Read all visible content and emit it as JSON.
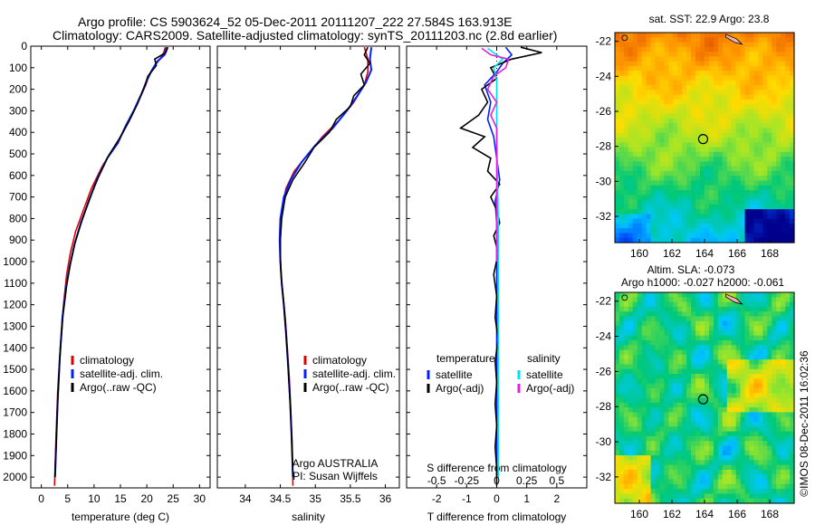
{
  "header": {
    "line1": "Argo profile: CS 5903624_52 05-Dec-2011 20111207_222 27.584S 163.913E",
    "line2": "Climatology: CARS2009. Satellite-adjusted climatology: synTS_20111203.nc (2.8d earlier)"
  },
  "colors": {
    "climatology": "#e00000",
    "satellite": "#0020ff",
    "argo": "#000000",
    "sal_sat": "#00e0f0",
    "sal_argo": "#e020e0"
  },
  "chart_data": [
    {
      "type": "line",
      "xlabel": "temperature (deg C)",
      "xlim": [
        -2,
        32
      ],
      "xticks": [
        0,
        5,
        10,
        15,
        20,
        25,
        30
      ],
      "ylim": [
        0,
        2050
      ],
      "yticks": [
        0,
        100,
        200,
        300,
        400,
        500,
        600,
        700,
        800,
        900,
        1000,
        1100,
        1200,
        1300,
        1400,
        1500,
        1600,
        1700,
        1800,
        1900,
        2000
      ],
      "legend": [
        "climatology",
        "satellite-adj. clim.",
        "Argo(..raw -QC)"
      ],
      "series": [
        {
          "name": "climatology",
          "color": "#e00000",
          "points": [
            [
              23.5,
              5
            ],
            [
              23.2,
              30
            ],
            [
              22.5,
              60
            ],
            [
              21.5,
              90
            ],
            [
              20.5,
              130
            ],
            [
              19.8,
              180
            ],
            [
              18.5,
              250
            ],
            [
              17,
              330
            ],
            [
              15.5,
              400
            ],
            [
              13.5,
              480
            ],
            [
              11.5,
              560
            ],
            [
              9.5,
              660
            ],
            [
              8,
              760
            ],
            [
              6.5,
              860
            ],
            [
              5.5,
              960
            ],
            [
              4.8,
              1060
            ],
            [
              4.2,
              1200
            ],
            [
              3.6,
              1400
            ],
            [
              3.1,
              1600
            ],
            [
              2.8,
              1800
            ],
            [
              2.6,
              1950
            ],
            [
              2.5,
              2040
            ]
          ]
        },
        {
          "name": "satellite-adj. clim.",
          "color": "#0020ff",
          "points": [
            [
              23.8,
              5
            ],
            [
              23.4,
              40
            ],
            [
              22,
              70
            ],
            [
              21,
              110
            ],
            [
              20,
              160
            ],
            [
              19,
              220
            ],
            [
              17.5,
              300
            ],
            [
              16,
              370
            ],
            [
              14.5,
              450
            ],
            [
              12.5,
              520
            ],
            [
              10.5,
              620
            ],
            [
              9,
              720
            ],
            [
              7.5,
              820
            ],
            [
              6.3,
              920
            ],
            [
              5.4,
              1020
            ],
            [
              4.7,
              1120
            ],
            [
              4,
              1260
            ],
            [
              3.5,
              1450
            ],
            [
              3.1,
              1650
            ],
            [
              2.8,
              1850
            ],
            [
              2.6,
              2000
            ]
          ]
        },
        {
          "name": "Argo(..raw -QC)",
          "color": "#000000",
          "points": [
            [
              24,
              5
            ],
            [
              23.6,
              30
            ],
            [
              21.5,
              60
            ],
            [
              21.8,
              90
            ],
            [
              20.2,
              140
            ],
            [
              19.4,
              200
            ],
            [
              18.2,
              270
            ],
            [
              16.6,
              350
            ],
            [
              14.8,
              430
            ],
            [
              12.7,
              510
            ],
            [
              10.8,
              610
            ],
            [
              9.1,
              710
            ],
            [
              7.7,
              810
            ],
            [
              6.4,
              910
            ],
            [
              5.5,
              1010
            ],
            [
              4.8,
              1110
            ],
            [
              4.1,
              1250
            ],
            [
              3.5,
              1450
            ],
            [
              3.1,
              1650
            ],
            [
              2.8,
              1850
            ],
            [
              2.6,
              2000
            ]
          ]
        }
      ]
    },
    {
      "type": "line",
      "xlabel": "salinity",
      "xlim": [
        33.6,
        36.2
      ],
      "xticks": [
        34,
        34.5,
        35,
        35.5,
        36
      ],
      "ylim": [
        0,
        2050
      ],
      "legend": [
        "climatology",
        "satellite-adj. clim.",
        "Argo(..raw -QC)"
      ],
      "annotation": [
        "Argo AUSTRALIA",
        "PI: Susan Wijffels"
      ],
      "series": [
        {
          "name": "climatology",
          "color": "#e00000",
          "points": [
            [
              35.7,
              5
            ],
            [
              35.75,
              60
            ],
            [
              35.75,
              120
            ],
            [
              35.7,
              180
            ],
            [
              35.55,
              260
            ],
            [
              35.35,
              340
            ],
            [
              35.1,
              420
            ],
            [
              34.9,
              500
            ],
            [
              34.7,
              580
            ],
            [
              34.58,
              660
            ],
            [
              34.52,
              760
            ],
            [
              34.5,
              860
            ],
            [
              34.5,
              960
            ],
            [
              34.51,
              1060
            ],
            [
              34.54,
              1160
            ],
            [
              34.57,
              1260
            ],
            [
              34.6,
              1400
            ],
            [
              34.63,
              1550
            ],
            [
              34.65,
              1700
            ],
            [
              34.67,
              1850
            ],
            [
              34.68,
              2040
            ]
          ]
        },
        {
          "name": "satellite-adj. clim.",
          "color": "#0020ff",
          "points": [
            [
              35.8,
              5
            ],
            [
              35.78,
              60
            ],
            [
              35.8,
              110
            ],
            [
              35.72,
              170
            ],
            [
              35.6,
              230
            ],
            [
              35.45,
              300
            ],
            [
              35.25,
              380
            ],
            [
              35.0,
              460
            ],
            [
              34.8,
              540
            ],
            [
              34.65,
              620
            ],
            [
              34.55,
              700
            ],
            [
              34.5,
              800
            ],
            [
              34.49,
              900
            ],
            [
              34.5,
              1000
            ],
            [
              34.52,
              1100
            ],
            [
              34.55,
              1200
            ],
            [
              34.58,
              1330
            ],
            [
              34.61,
              1480
            ],
            [
              34.64,
              1650
            ],
            [
              34.66,
              1800
            ],
            [
              34.68,
              2000
            ]
          ]
        },
        {
          "name": "Argo(..raw -QC)",
          "color": "#000000",
          "points": [
            [
              35.75,
              5
            ],
            [
              35.7,
              40
            ],
            [
              35.78,
              80
            ],
            [
              35.65,
              130
            ],
            [
              35.7,
              180
            ],
            [
              35.55,
              230
            ],
            [
              35.5,
              280
            ],
            [
              35.3,
              340
            ],
            [
              35.2,
              400
            ],
            [
              34.98,
              470
            ],
            [
              34.85,
              540
            ],
            [
              34.68,
              620
            ],
            [
              34.57,
              700
            ],
            [
              34.52,
              800
            ],
            [
              34.5,
              900
            ],
            [
              34.5,
              1000
            ],
            [
              34.52,
              1100
            ],
            [
              34.55,
              1200
            ],
            [
              34.58,
              1330
            ],
            [
              34.61,
              1480
            ],
            [
              34.64,
              1650
            ],
            [
              34.66,
              1800
            ],
            [
              34.68,
              2000
            ]
          ]
        }
      ]
    },
    {
      "type": "line",
      "xlabel": "T difference from climatology",
      "xlabel2": "S difference from climatology",
      "xlim": [
        -3,
        3
      ],
      "xticks": [
        -2,
        -1,
        0,
        1,
        2
      ],
      "xticks2": [
        -0.5,
        -0.25,
        0,
        0.25,
        0.5
      ],
      "ylim": [
        0,
        2050
      ],
      "legend_titles": [
        "temperature",
        "salinity"
      ],
      "legend": [
        "satellite",
        "Argo(-adj)",
        "satellite",
        "Argo(-adj)"
      ],
      "series": [
        {
          "name": "satellite",
          "color": "#0020ff",
          "points": [
            [
              0.3,
              5
            ],
            [
              0.5,
              40
            ],
            [
              0.2,
              80
            ],
            [
              0,
              120
            ],
            [
              -0.4,
              180
            ],
            [
              -0.2,
              260
            ],
            [
              -0.3,
              340
            ],
            [
              -0.1,
              420
            ],
            [
              0,
              520
            ],
            [
              0.1,
              620
            ],
            [
              -0.05,
              720
            ],
            [
              0,
              820
            ],
            [
              0,
              1000
            ],
            [
              0,
              1200
            ],
            [
              0,
              1500
            ],
            [
              0,
              2000
            ]
          ]
        },
        {
          "name": "Argo(-adj)",
          "color": "#000000",
          "points": [
            [
              0.8,
              5
            ],
            [
              1.5,
              30
            ],
            [
              0.5,
              60
            ],
            [
              -0.2,
              100
            ],
            [
              0,
              150
            ],
            [
              -0.5,
              200
            ],
            [
              -0.3,
              260
            ],
            [
              -0.6,
              320
            ],
            [
              -1.2,
              380
            ],
            [
              -0.4,
              420
            ],
            [
              -0.8,
              470
            ],
            [
              -0.2,
              520
            ],
            [
              -0.3,
              580
            ],
            [
              0.1,
              640
            ],
            [
              -0.2,
              700
            ],
            [
              0,
              760
            ],
            [
              0.1,
              820
            ],
            [
              -0.1,
              880
            ],
            [
              0.05,
              960
            ],
            [
              -0.1,
              1060
            ],
            [
              0,
              1160
            ],
            [
              -0.05,
              1260
            ],
            [
              0.05,
              1360
            ],
            [
              -0.05,
              1460
            ],
            [
              0,
              1560
            ],
            [
              -0.05,
              1660
            ],
            [
              0,
              1760
            ],
            [
              -0.05,
              1860
            ],
            [
              0,
              1960
            ],
            [
              0,
              2040
            ]
          ]
        },
        {
          "name": "satellite",
          "color": "#00e0f0",
          "points": [
            [
              -0.3,
              10
            ],
            [
              0.2,
              60
            ],
            [
              -0.1,
              100
            ],
            [
              0,
              160
            ],
            [
              0,
              400
            ],
            [
              0.05,
              800
            ],
            [
              0.05,
              1200
            ],
            [
              0.05,
              1600
            ],
            [
              0.05,
              2000
            ]
          ]
        },
        {
          "name": "Argo(-adj)",
          "color": "#e020e0",
          "points": [
            [
              -0.5,
              10
            ],
            [
              -0.2,
              40
            ],
            [
              0.4,
              60
            ],
            [
              0.3,
              100
            ],
            [
              -0.1,
              140
            ],
            [
              -0.3,
              200
            ],
            [
              0,
              260
            ],
            [
              -0.2,
              320
            ],
            [
              0,
              380
            ],
            [
              0,
              1000
            ]
          ]
        }
      ]
    },
    {
      "type": "heatmap",
      "title": "sat. SST: 22.9 Argo: 23.8",
      "xticks": [
        160,
        162,
        164,
        166,
        168
      ],
      "yticks": [
        -22,
        -24,
        -26,
        -28,
        -30,
        -32
      ],
      "xlim": [
        158.5,
        169.5
      ],
      "ylim": [
        -33.5,
        -21.5
      ],
      "argo_position": [
        163.913,
        -27.584
      ]
    },
    {
      "type": "heatmap",
      "title": "Altim. SLA: -0.073",
      "title2": "Argo h1000: -0.027 h2000: -0.061",
      "xticks": [
        160,
        162,
        164,
        166,
        168
      ],
      "yticks": [
        -22,
        -24,
        -26,
        -28,
        -30,
        -32
      ],
      "xlim": [
        158.5,
        169.5
      ],
      "ylim": [
        -33.5,
        -21.5
      ],
      "argo_position": [
        163.913,
        -27.584
      ]
    }
  ],
  "credit": "©IMOS 08-Dec-2011 16:02:36"
}
